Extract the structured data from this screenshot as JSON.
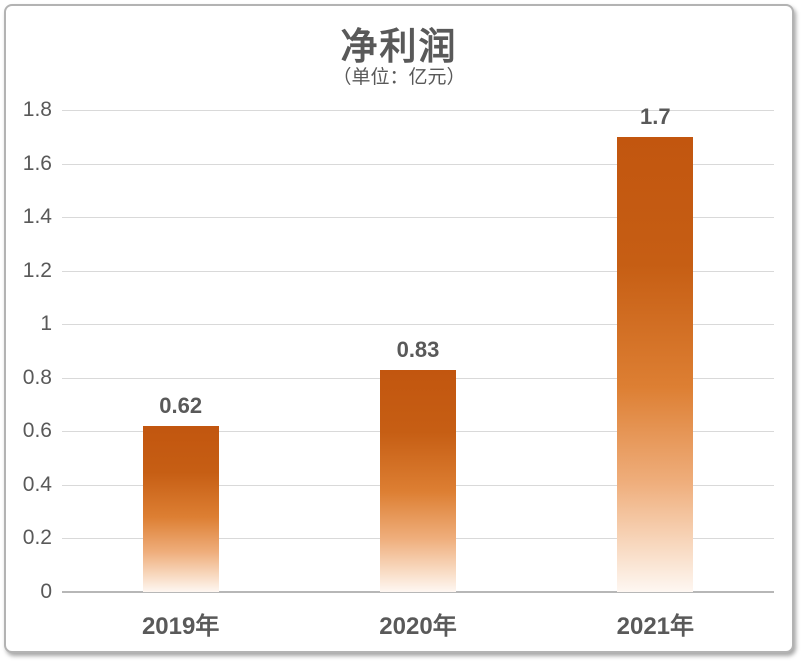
{
  "chart_data": {
    "type": "bar",
    "title": "净利润",
    "subtitle": "（单位：亿元）",
    "categories": [
      "2019年",
      "2020年",
      "2021年"
    ],
    "values": [
      0.62,
      0.83,
      1.7
    ],
    "value_labels": [
      "0.62",
      "0.83",
      "1.7"
    ],
    "xlabel": "",
    "ylabel": "",
    "ylim": [
      0,
      1.8
    ],
    "ytick_step": 0.2,
    "ytick_labels": [
      "0",
      "0.2",
      "0.4",
      "0.6",
      "0.8",
      "1",
      "1.2",
      "1.4",
      "1.6",
      "1.8"
    ],
    "grid": true,
    "legend": "none",
    "colors": {
      "bar_gradient_top": "#c2560f",
      "bar_gradient_bottom": "#fef7f2",
      "text": "#595959",
      "gridline": "#d9d9d9",
      "axis_line": "#b7b7b7",
      "card_border": "#b3b3b3",
      "background": "#ffffff"
    }
  }
}
